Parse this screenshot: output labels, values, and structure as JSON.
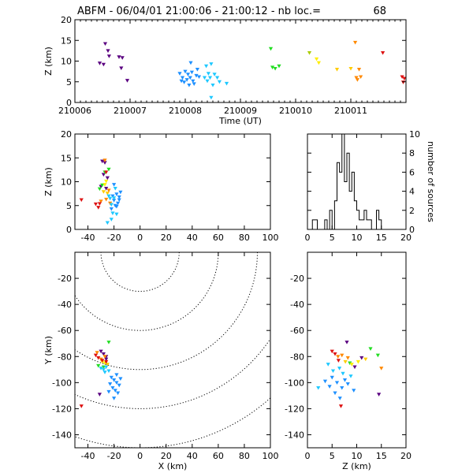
{
  "title": "ABFM - 06/04/01 21:00:06 - 21:00:12 - nb loc.=",
  "title_count": "68",
  "colors": {
    "axis": "#000000",
    "ring": "#000000",
    "background": "#ffffff"
  },
  "chart_data": [
    {
      "id": "time-height",
      "type": "scatter",
      "xlabel": "Time (UT)",
      "ylabel": "Z (km)",
      "xlim": [
        210006,
        210012
      ],
      "ylim": [
        0,
        20
      ],
      "xticks": [
        "210006",
        "210007",
        "210008",
        "210009",
        "210010",
        "210011"
      ],
      "yticks": [
        "0",
        "5",
        "10",
        "15",
        "20"
      ],
      "points": [
        {
          "x": 210006.45,
          "y": 9.5,
          "color": "#5a0080"
        },
        {
          "x": 210006.55,
          "y": 14.2,
          "color": "#5a0080"
        },
        {
          "x": 210006.6,
          "y": 12.5,
          "color": "#5a0080"
        },
        {
          "x": 210006.62,
          "y": 11.2,
          "color": "#5a0080"
        },
        {
          "x": 210006.52,
          "y": 9.2,
          "color": "#5a0080"
        },
        {
          "x": 210006.8,
          "y": 11.0,
          "color": "#5a0080"
        },
        {
          "x": 210006.86,
          "y": 10.8,
          "color": "#5a0080"
        },
        {
          "x": 210006.84,
          "y": 8.3,
          "color": "#5a0080"
        },
        {
          "x": 210006.95,
          "y": 5.3,
          "color": "#5a0080"
        },
        {
          "x": 210007.9,
          "y": 7.0,
          "color": "#1e90ff"
        },
        {
          "x": 210007.95,
          "y": 6.0,
          "color": "#1e90ff"
        },
        {
          "x": 210007.98,
          "y": 4.9,
          "color": "#1e90ff"
        },
        {
          "x": 210008.0,
          "y": 7.5,
          "color": "#1e90ff"
        },
        {
          "x": 210008.03,
          "y": 5.5,
          "color": "#1e90ff"
        },
        {
          "x": 210008.05,
          "y": 6.8,
          "color": "#1e90ff"
        },
        {
          "x": 210008.07,
          "y": 4.2,
          "color": "#1e90ff"
        },
        {
          "x": 210008.09,
          "y": 6.0,
          "color": "#1e90ff"
        },
        {
          "x": 210008.1,
          "y": 9.6,
          "color": "#1e90ff"
        },
        {
          "x": 210008.12,
          "y": 7.3,
          "color": "#1e90ff"
        },
        {
          "x": 210008.14,
          "y": 5.2,
          "color": "#1e90ff"
        },
        {
          "x": 210008.16,
          "y": 4.5,
          "color": "#1e90ff"
        },
        {
          "x": 210008.2,
          "y": 6.5,
          "color": "#1e90ff"
        },
        {
          "x": 210008.22,
          "y": 8.0,
          "color": "#1e90ff"
        },
        {
          "x": 210008.25,
          "y": 6.2,
          "color": "#1e90ff"
        },
        {
          "x": 210007.93,
          "y": 5.2,
          "color": "#1e90ff"
        },
        {
          "x": 210008.35,
          "y": 6.0,
          "color": "#1ec8ff"
        },
        {
          "x": 210008.38,
          "y": 8.8,
          "color": "#1ec8ff"
        },
        {
          "x": 210008.4,
          "y": 5.2,
          "color": "#1ec8ff"
        },
        {
          "x": 210008.42,
          "y": 7.0,
          "color": "#1ec8ff"
        },
        {
          "x": 210008.45,
          "y": 6.0,
          "color": "#1ec8ff"
        },
        {
          "x": 210008.47,
          "y": 1.2,
          "color": "#1ec8ff"
        },
        {
          "x": 210008.5,
          "y": 4.2,
          "color": "#1ec8ff"
        },
        {
          "x": 210008.53,
          "y": 6.8,
          "color": "#1ec8ff"
        },
        {
          "x": 210008.58,
          "y": 6.0,
          "color": "#1ec8ff"
        },
        {
          "x": 210008.62,
          "y": 5.0,
          "color": "#1ec8ff"
        },
        {
          "x": 210008.75,
          "y": 4.6,
          "color": "#1ec8ff"
        },
        {
          "x": 210008.47,
          "y": 9.3,
          "color": "#1ec8ff"
        },
        {
          "x": 210009.55,
          "y": 13.0,
          "color": "#22dd22"
        },
        {
          "x": 210009.58,
          "y": 8.5,
          "color": "#22dd22"
        },
        {
          "x": 210009.63,
          "y": 8.2,
          "color": "#22dd22"
        },
        {
          "x": 210009.7,
          "y": 8.8,
          "color": "#22dd22"
        },
        {
          "x": 210010.25,
          "y": 12.0,
          "color": "#aacc00"
        },
        {
          "x": 210010.38,
          "y": 10.5,
          "color": "#ffee00"
        },
        {
          "x": 210010.42,
          "y": 9.6,
          "color": "#ffee00"
        },
        {
          "x": 210010.75,
          "y": 8.0,
          "color": "#ffcc00"
        },
        {
          "x": 210011.0,
          "y": 8.2,
          "color": "#ffcc00"
        },
        {
          "x": 210011.08,
          "y": 14.5,
          "color": "#ff8800"
        },
        {
          "x": 210011.1,
          "y": 6.0,
          "color": "#ff8800"
        },
        {
          "x": 210011.12,
          "y": 5.5,
          "color": "#ff8800"
        },
        {
          "x": 210011.15,
          "y": 8.0,
          "color": "#ff8800"
        },
        {
          "x": 210011.18,
          "y": 6.2,
          "color": "#ff8800"
        },
        {
          "x": 210011.58,
          "y": 12.0,
          "color": "#dd1111"
        },
        {
          "x": 210011.93,
          "y": 6.2,
          "color": "#dd1111"
        },
        {
          "x": 210011.95,
          "y": 4.9,
          "color": "#dd1111"
        },
        {
          "x": 210011.97,
          "y": 5.8,
          "color": "#dd1111"
        }
      ]
    },
    {
      "id": "x-z",
      "type": "scatter",
      "xlabel": "",
      "ylabel": "Z (km)",
      "xlim": [
        -50,
        100
      ],
      "ylim": [
        0,
        20
      ],
      "xticks": [
        "-40",
        "-20",
        "0",
        "20",
        "40",
        "60",
        "80",
        "100"
      ],
      "yticks": [
        "0",
        "5",
        "10",
        "15",
        "20"
      ],
      "points": [
        {
          "x": -29,
          "y": 14.3,
          "color": "#5a0080"
        },
        {
          "x": -27,
          "y": 14.0,
          "color": "#5a0080"
        },
        {
          "x": -25,
          "y": 10.8,
          "color": "#5a0080"
        },
        {
          "x": -28,
          "y": 11.5,
          "color": "#5a0080"
        },
        {
          "x": -30,
          "y": 9.0,
          "color": "#5a0080"
        },
        {
          "x": -26,
          "y": 8.6,
          "color": "#5a0080"
        },
        {
          "x": -24,
          "y": 12.6,
          "color": "#22dd22"
        },
        {
          "x": -27,
          "y": 12.0,
          "color": "#22dd22"
        },
        {
          "x": -29,
          "y": 9.3,
          "color": "#22dd22"
        },
        {
          "x": -31,
          "y": 8.5,
          "color": "#22dd22"
        },
        {
          "x": -26,
          "y": 10.1,
          "color": "#ffee00"
        },
        {
          "x": -27,
          "y": 9.4,
          "color": "#ffee00"
        },
        {
          "x": -28,
          "y": 7.9,
          "color": "#ffcc00"
        },
        {
          "x": -25,
          "y": 7.6,
          "color": "#ffcc00"
        },
        {
          "x": -27,
          "y": 14.5,
          "color": "#ff8800"
        },
        {
          "x": -30,
          "y": 5.9,
          "color": "#ff8800"
        },
        {
          "x": -23,
          "y": 5.5,
          "color": "#ff8800"
        },
        {
          "x": -26,
          "y": 6.3,
          "color": "#ff8800"
        },
        {
          "x": -24,
          "y": 8.2,
          "color": "#ff8800"
        },
        {
          "x": -45,
          "y": 6.2,
          "color": "#dd1111"
        },
        {
          "x": -34,
          "y": 5.3,
          "color": "#dd1111"
        },
        {
          "x": -32,
          "y": 4.6,
          "color": "#dd1111"
        },
        {
          "x": -31,
          "y": 5.4,
          "color": "#dd1111"
        },
        {
          "x": -26,
          "y": 12.0,
          "color": "#dd1111"
        },
        {
          "x": -21,
          "y": 7.0,
          "color": "#1e90ff"
        },
        {
          "x": -20,
          "y": 6.1,
          "color": "#1e90ff"
        },
        {
          "x": -19,
          "y": 5.0,
          "color": "#1e90ff"
        },
        {
          "x": -18,
          "y": 7.4,
          "color": "#1e90ff"
        },
        {
          "x": -17,
          "y": 5.5,
          "color": "#1e90ff"
        },
        {
          "x": -16,
          "y": 6.8,
          "color": "#1e90ff"
        },
        {
          "x": -15,
          "y": 7.8,
          "color": "#1e90ff"
        },
        {
          "x": -22,
          "y": 4.3,
          "color": "#1e90ff"
        },
        {
          "x": -20,
          "y": 9.4,
          "color": "#1e90ff"
        },
        {
          "x": -18,
          "y": 4.8,
          "color": "#1e90ff"
        },
        {
          "x": -16,
          "y": 6.2,
          "color": "#1e90ff"
        },
        {
          "x": -23,
          "y": 6.5,
          "color": "#1ec8ff"
        },
        {
          "x": -22,
          "y": 5.2,
          "color": "#1ec8ff"
        },
        {
          "x": -21,
          "y": 3.4,
          "color": "#1ec8ff"
        },
        {
          "x": -24,
          "y": 7.0,
          "color": "#1ec8ff"
        },
        {
          "x": -19,
          "y": 8.6,
          "color": "#1ec8ff"
        },
        {
          "x": -22,
          "y": 2.1,
          "color": "#1ec8ff"
        },
        {
          "x": -25,
          "y": 1.4,
          "color": "#1ec8ff"
        },
        {
          "x": -20,
          "y": 6.6,
          "color": "#1ec8ff"
        },
        {
          "x": -18,
          "y": 3.2,
          "color": "#1ec8ff"
        }
      ]
    },
    {
      "id": "histogram",
      "type": "histogram",
      "xlabel": "",
      "ylabel": "number of sources",
      "xlim": [
        0,
        20
      ],
      "ylim": [
        0,
        10
      ],
      "bin_width": 0.5,
      "xticks": [
        "0",
        "5",
        "10",
        "15",
        "20"
      ],
      "yticks": [
        "0",
        "2",
        "4",
        "6",
        "8",
        "10"
      ],
      "counts": [
        0,
        0,
        1,
        1,
        0,
        0,
        0,
        1,
        0,
        2,
        0,
        3,
        7,
        6,
        10,
        5,
        8,
        4,
        6,
        3,
        2,
        1,
        1,
        2,
        1,
        1,
        0,
        0,
        2,
        1,
        0,
        0,
        0,
        0,
        0,
        0,
        0,
        0,
        0,
        0
      ]
    },
    {
      "id": "x-y",
      "type": "scatter",
      "xlabel": "X (km)",
      "ylabel": "Y (km)",
      "xlim": [
        -50,
        100
      ],
      "ylim": [
        -150,
        0
      ],
      "xticks": [
        "-40",
        "-20",
        "0",
        "20",
        "40",
        "60",
        "80",
        "100"
      ],
      "yticks": [
        "-140",
        "-120",
        "-100",
        "-80",
        "-60",
        "-40",
        "-20"
      ],
      "range_rings_km": [
        30,
        60,
        90,
        120,
        150
      ],
      "ring_center": [
        0,
        0
      ],
      "points": [
        {
          "x": -30,
          "y": -76,
          "color": "#5a0080"
        },
        {
          "x": -28,
          "y": -78,
          "color": "#5a0080"
        },
        {
          "x": -26,
          "y": -80,
          "color": "#5a0080"
        },
        {
          "x": -31,
          "y": -109,
          "color": "#5a0080"
        },
        {
          "x": -26,
          "y": -82,
          "color": "#5a0080"
        },
        {
          "x": -24,
          "y": -69,
          "color": "#22dd22"
        },
        {
          "x": -28,
          "y": -88,
          "color": "#22dd22"
        },
        {
          "x": -32,
          "y": -87,
          "color": "#22dd22"
        },
        {
          "x": -27,
          "y": -85,
          "color": "#ffee00"
        },
        {
          "x": -29,
          "y": -84,
          "color": "#ffee00"
        },
        {
          "x": -25,
          "y": -86,
          "color": "#ffcc00"
        },
        {
          "x": -33,
          "y": -77,
          "color": "#ff8800"
        },
        {
          "x": -30,
          "y": -82,
          "color": "#ff8800"
        },
        {
          "x": -27,
          "y": -80,
          "color": "#ff8800"
        },
        {
          "x": -45,
          "y": -118,
          "color": "#dd1111"
        },
        {
          "x": -34,
          "y": -79,
          "color": "#dd1111"
        },
        {
          "x": -32,
          "y": -81,
          "color": "#dd1111"
        },
        {
          "x": -29,
          "y": -83,
          "color": "#dd1111"
        },
        {
          "x": -26,
          "y": -84,
          "color": "#dd1111"
        },
        {
          "x": -22,
          "y": -96,
          "color": "#1e90ff"
        },
        {
          "x": -20,
          "y": -98,
          "color": "#1e90ff"
        },
        {
          "x": -18,
          "y": -100,
          "color": "#1e90ff"
        },
        {
          "x": -16,
          "y": -102,
          "color": "#1e90ff"
        },
        {
          "x": -21,
          "y": -104,
          "color": "#1e90ff"
        },
        {
          "x": -19,
          "y": -106,
          "color": "#1e90ff"
        },
        {
          "x": -17,
          "y": -108,
          "color": "#1e90ff"
        },
        {
          "x": -23,
          "y": -101,
          "color": "#1e90ff"
        },
        {
          "x": -15,
          "y": -97,
          "color": "#1e90ff"
        },
        {
          "x": -20,
          "y": -112,
          "color": "#1e90ff"
        },
        {
          "x": -18,
          "y": -94,
          "color": "#1e90ff"
        },
        {
          "x": -24,
          "y": -107,
          "color": "#1e90ff"
        },
        {
          "x": -28,
          "y": -90,
          "color": "#1ec8ff"
        },
        {
          "x": -26,
          "y": -88,
          "color": "#1ec8ff"
        },
        {
          "x": -24,
          "y": -91,
          "color": "#1ec8ff"
        },
        {
          "x": -30,
          "y": -89,
          "color": "#1ec8ff"
        },
        {
          "x": -27,
          "y": -92,
          "color": "#1ec8ff"
        }
      ]
    },
    {
      "id": "z-y",
      "type": "scatter",
      "xlabel": "Z (km)",
      "ylabel": "",
      "xlim": [
        0,
        20
      ],
      "ylim": [
        -150,
        0
      ],
      "xticks": [
        "0",
        "5",
        "10",
        "15",
        "20"
      ],
      "yticks": [
        "-140",
        "-120",
        "-100",
        "-80",
        "-60",
        "-40",
        "-20"
      ],
      "points": [
        {
          "x": 8.0,
          "y": -69,
          "color": "#5a0080"
        },
        {
          "x": 11.0,
          "y": -81,
          "color": "#5a0080"
        },
        {
          "x": 14.5,
          "y": -109,
          "color": "#5a0080"
        },
        {
          "x": 9.6,
          "y": -88,
          "color": "#5a0080"
        },
        {
          "x": 12.8,
          "y": -74,
          "color": "#22dd22"
        },
        {
          "x": 8.6,
          "y": -85,
          "color": "#22dd22"
        },
        {
          "x": 14.3,
          "y": -79,
          "color": "#22dd22"
        },
        {
          "x": 10.3,
          "y": -84,
          "color": "#ffee00"
        },
        {
          "x": 9.0,
          "y": -86,
          "color": "#ffee00"
        },
        {
          "x": 7.7,
          "y": -84,
          "color": "#ffcc00"
        },
        {
          "x": 11.8,
          "y": -82,
          "color": "#ffcc00"
        },
        {
          "x": 15.0,
          "y": -89,
          "color": "#ff8800"
        },
        {
          "x": 6.2,
          "y": -80,
          "color": "#ff8800"
        },
        {
          "x": 7.0,
          "y": -79,
          "color": "#ff8800"
        },
        {
          "x": 8.2,
          "y": -81,
          "color": "#ff8800"
        },
        {
          "x": 5.0,
          "y": -76,
          "color": "#dd1111"
        },
        {
          "x": 5.6,
          "y": -78,
          "color": "#dd1111"
        },
        {
          "x": 6.3,
          "y": -83,
          "color": "#dd1111"
        },
        {
          "x": 6.8,
          "y": -118,
          "color": "#dd1111"
        },
        {
          "x": 5.0,
          "y": -96,
          "color": "#1e90ff"
        },
        {
          "x": 6.0,
          "y": -100,
          "color": "#1e90ff"
        },
        {
          "x": 7.0,
          "y": -104,
          "color": "#1e90ff"
        },
        {
          "x": 7.6,
          "y": -98,
          "color": "#1e90ff"
        },
        {
          "x": 4.5,
          "y": -103,
          "color": "#1e90ff"
        },
        {
          "x": 5.6,
          "y": -108,
          "color": "#1e90ff"
        },
        {
          "x": 6.6,
          "y": -112,
          "color": "#1e90ff"
        },
        {
          "x": 8.2,
          "y": -101,
          "color": "#1e90ff"
        },
        {
          "x": 9.4,
          "y": -106,
          "color": "#1e90ff"
        },
        {
          "x": 3.6,
          "y": -99,
          "color": "#1e90ff"
        },
        {
          "x": 5.2,
          "y": -91,
          "color": "#1ec8ff"
        },
        {
          "x": 6.5,
          "y": -89,
          "color": "#1ec8ff"
        },
        {
          "x": 7.2,
          "y": -93,
          "color": "#1ec8ff"
        },
        {
          "x": 2.2,
          "y": -104,
          "color": "#1ec8ff"
        },
        {
          "x": 4.2,
          "y": -86,
          "color": "#1ec8ff"
        },
        {
          "x": 8.8,
          "y": -95,
          "color": "#1ec8ff"
        }
      ]
    }
  ]
}
